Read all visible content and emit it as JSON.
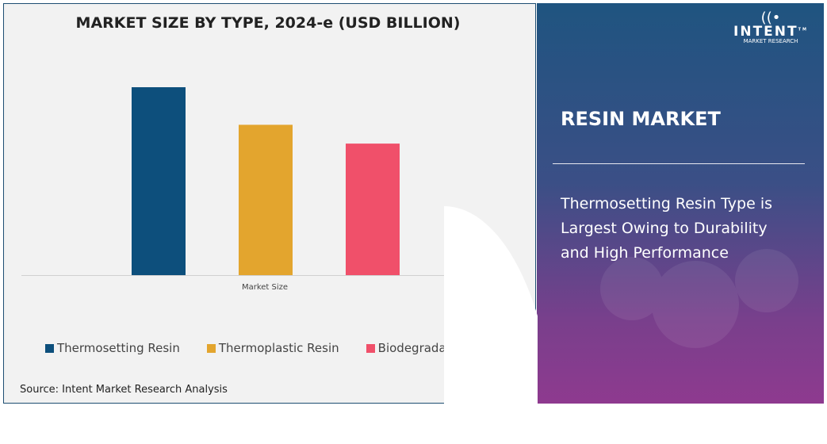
{
  "left_panel": {
    "source": "Source: Intent Market Research Analysis"
  },
  "chart_data": {
    "type": "bar",
    "title": "MARKET SIZE BY TYPE, 2024-e (USD BILLION)",
    "categories": [
      "Market Size"
    ],
    "xlabel": "Market Size",
    "ylabel": "",
    "value_note": "relative bar heights estimated; no axis or labels printed",
    "series": [
      {
        "name": "Thermosetting Resin",
        "values": [
          100
        ],
        "color": "#0d4f7c"
      },
      {
        "name": "Thermoplastic Resin",
        "values": [
          80
        ],
        "color": "#e3a52e"
      },
      {
        "name": "Biodegradable Resin",
        "values": [
          70
        ],
        "color": "#f0506a"
      }
    ],
    "ylim": [
      0,
      100
    ],
    "grid": false,
    "legend_position": "bottom"
  },
  "right_panel": {
    "title": "RESIN MARKET",
    "headline": "Thermosetting Resin Type is Largest Owing to Durability and High Performance",
    "logo": {
      "name": "INTENT",
      "tagline": "MARKET RESEARCH",
      "tm": "TM"
    },
    "gradient_top": "#1f5480",
    "gradient_bottom": "#8e3a8f"
  }
}
